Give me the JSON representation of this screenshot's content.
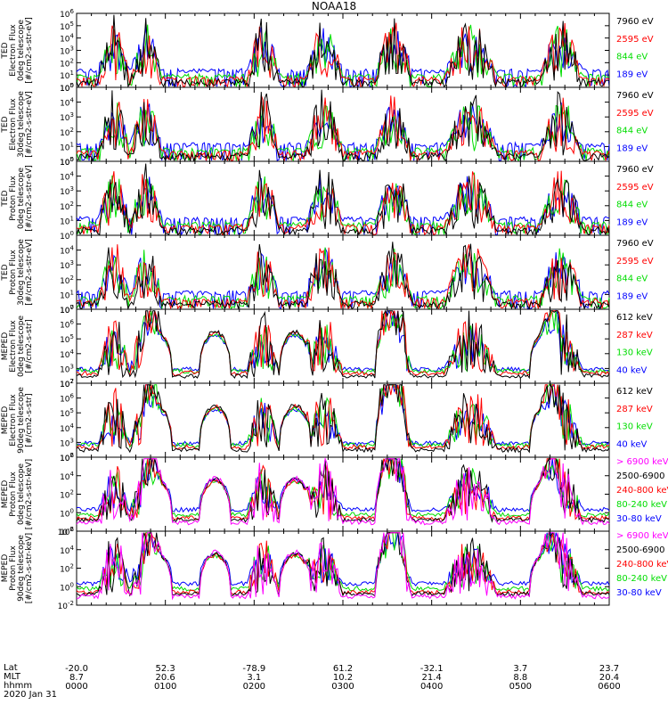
{
  "title": "NOAA18",
  "date": "2020 Jan 31",
  "footer_labels": [
    "Lat",
    "MLT",
    "hhmm"
  ],
  "chart_data": [
    {
      "type": "line",
      "ylabel": [
        "TED",
        "Electron Flux",
        "0deg telescope",
        "[#/cm2-s-str-eV]"
      ],
      "yscale": "log",
      "ylim": [
        1,
        1000000
      ],
      "ytick_exponents": [
        0,
        1,
        2,
        3,
        4,
        5,
        6
      ],
      "series": [
        {
          "name": "7960 eV",
          "color": "#000000"
        },
        {
          "name": "2595 eV",
          "color": "#ff0000"
        },
        {
          "name": "844 eV",
          "color": "#00dd00"
        },
        {
          "name": "189 eV",
          "color": "#0000ff"
        }
      ]
    },
    {
      "type": "line",
      "ylabel": [
        "TED",
        "Electron Flux",
        "30deg telescope",
        "[#/cm2-s-str-eV]"
      ],
      "yscale": "log",
      "ylim": [
        1,
        100000
      ],
      "ytick_exponents": [
        0,
        1,
        2,
        3,
        4,
        5
      ],
      "series": [
        {
          "name": "7960 eV",
          "color": "#000000"
        },
        {
          "name": "2595 eV",
          "color": "#ff0000"
        },
        {
          "name": "844 eV",
          "color": "#00dd00"
        },
        {
          "name": "189 eV",
          "color": "#0000ff"
        }
      ]
    },
    {
      "type": "line",
      "ylabel": [
        "TED",
        "Proton Flux",
        "0deg telescope",
        "[#/cm2-s-str-eV]"
      ],
      "yscale": "log",
      "ylim": [
        1,
        100000
      ],
      "ytick_exponents": [
        0,
        1,
        2,
        3,
        4,
        5
      ],
      "series": [
        {
          "name": "7960 eV",
          "color": "#000000"
        },
        {
          "name": "2595 eV",
          "color": "#ff0000"
        },
        {
          "name": "844 eV",
          "color": "#00dd00"
        },
        {
          "name": "189 eV",
          "color": "#0000ff"
        }
      ]
    },
    {
      "type": "line",
      "ylabel": [
        "TED",
        "Proton Flux",
        "30deg telescope",
        "[#/cm2-s-str-eV]"
      ],
      "yscale": "log",
      "ylim": [
        1,
        100000
      ],
      "ytick_exponents": [
        0,
        1,
        2,
        3,
        4
      ],
      "series": [
        {
          "name": "7960 eV",
          "color": "#000000"
        },
        {
          "name": "2595 eV",
          "color": "#ff0000"
        },
        {
          "name": "844 eV",
          "color": "#00dd00"
        },
        {
          "name": "189 eV",
          "color": "#0000ff"
        }
      ]
    },
    {
      "type": "line",
      "ylabel": [
        "MEPED",
        "Electron Flux",
        "0deg telescope",
        "[#/cm2-s-str]"
      ],
      "yscale": "log",
      "ylim": [
        100,
        10000000
      ],
      "ytick_exponents": [
        2,
        3,
        4,
        5,
        6,
        7
      ],
      "series": [
        {
          "name": "612 keV",
          "color": "#000000"
        },
        {
          "name": "287 keV",
          "color": "#ff0000"
        },
        {
          "name": "130 keV",
          "color": "#00dd00"
        },
        {
          "name": "40 keV",
          "color": "#0000ff"
        }
      ]
    },
    {
      "type": "line",
      "ylabel": [
        "MEPED",
        "Electron Flux",
        "90deg telescope",
        "[#/cm2-s-str]"
      ],
      "yscale": "log",
      "ylim": [
        100,
        10000000
      ],
      "ytick_exponents": [
        2,
        3,
        4,
        5,
        6,
        7
      ],
      "series": [
        {
          "name": "612 keV",
          "color": "#000000"
        },
        {
          "name": "287 keV",
          "color": "#ff0000"
        },
        {
          "name": "130 keV",
          "color": "#00dd00"
        },
        {
          "name": "40 keV",
          "color": "#0000ff"
        }
      ]
    },
    {
      "type": "line",
      "ylabel": [
        "MEPED",
        "Proton Flux",
        "0deg telescope",
        "[#/cm2-s-str-keV]"
      ],
      "yscale": "log",
      "ylim": [
        0.01,
        1000000
      ],
      "ytick_exponents": [
        -2,
        0,
        2,
        4,
        6
      ],
      "series": [
        {
          "name": "> 6900 keV",
          "color": "#ff00ff"
        },
        {
          "name": "2500-6900",
          "color": "#000000"
        },
        {
          "name": "240-800 keV",
          "color": "#ff0000"
        },
        {
          "name": "80-240 keV",
          "color": "#00dd00"
        },
        {
          "name": "30-80 keV",
          "color": "#0000ff"
        }
      ]
    },
    {
      "type": "line",
      "ylabel": [
        "MEPED",
        "Proton Flux",
        "90deg telescope",
        "[#/cm2-s-str-keV]"
      ],
      "yscale": "log",
      "ylim": [
        0.01,
        1000000
      ],
      "ytick_exponents": [
        -2,
        0,
        2,
        4,
        6
      ],
      "series": [
        {
          "name": "> 6900 keV",
          "color": "#ff00ff"
        },
        {
          "name": "2500-6900",
          "color": "#000000"
        },
        {
          "name": "240-800 keV",
          "color": "#ff0000"
        },
        {
          "name": "80-240 keV",
          "color": "#00dd00"
        },
        {
          "name": "30-80 keV",
          "color": "#0000ff"
        }
      ]
    }
  ],
  "x_axis": {
    "ticks": [
      {
        "lat": "-20.0",
        "mlt": "8.7",
        "hhmm": "0000"
      },
      {
        "lat": "52.3",
        "mlt": "20.6",
        "hhmm": "0100"
      },
      {
        "lat": "-78.9",
        "mlt": "3.1",
        "hhmm": "0200"
      },
      {
        "lat": "61.2",
        "mlt": "10.2",
        "hhmm": "0300"
      },
      {
        "lat": "-32.1",
        "mlt": "21.4",
        "hhmm": "0400"
      },
      {
        "lat": "3.7",
        "mlt": "8.8",
        "hhmm": "0500"
      },
      {
        "lat": "23.7",
        "mlt": "20.4",
        "hhmm": "0600"
      }
    ]
  }
}
